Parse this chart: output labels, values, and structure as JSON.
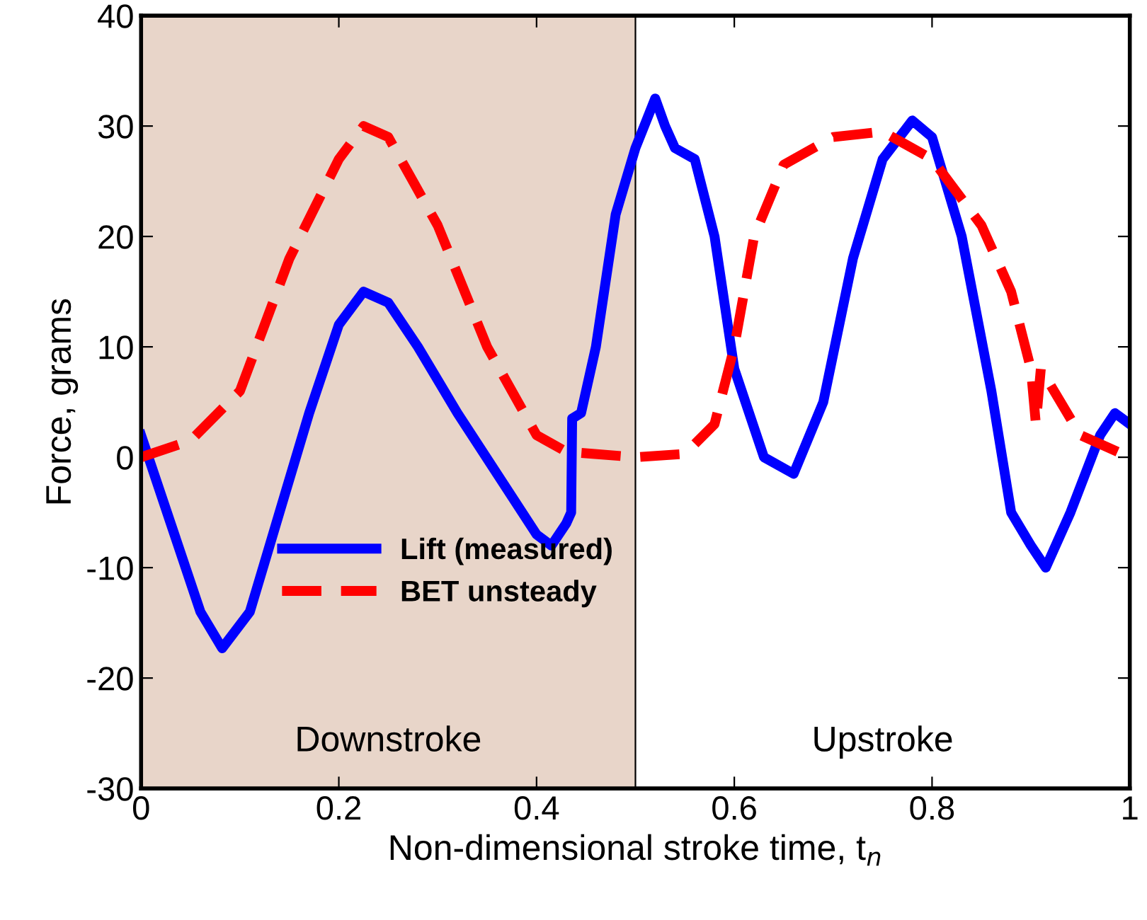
{
  "chart_data": {
    "type": "line",
    "xlabel": "Non-dimensional stroke time, t$_{n}$",
    "ylabel": "Force, grams",
    "xlim": [
      0,
      1
    ],
    "ylim": [
      -30,
      40
    ],
    "xticks": [
      0,
      0.2,
      0.4,
      0.6,
      0.8,
      1
    ],
    "yticks": [
      -30,
      -20,
      -10,
      0,
      10,
      20,
      30,
      40
    ],
    "grid": false,
    "legend": "bottom",
    "bands": [
      {
        "axis": "x",
        "from": 0,
        "to": 0.5,
        "label": "Downstroke",
        "color": "#e8d5c9"
      }
    ],
    "annotations": [
      "Upstroke"
    ],
    "ref_lines": [
      {
        "axis": "x",
        "value": 0.5,
        "color": "#000000"
      }
    ],
    "series": [
      {
        "name": "Lift (measured)",
        "color": "#0000ff",
        "line_style": "solid",
        "x": [
          0,
          0.03,
          0.06,
          0.082,
          0.11,
          0.14,
          0.17,
          0.2,
          0.225,
          0.25,
          0.28,
          0.32,
          0.36,
          0.4,
          0.415,
          0.43,
          0.435,
          0.436,
          0.445,
          0.46,
          0.48,
          0.5,
          0.52,
          0.53,
          0.54,
          0.56,
          0.58,
          0.6,
          0.63,
          0.66,
          0.69,
          0.72,
          0.75,
          0.78,
          0.8,
          0.83,
          0.86,
          0.88,
          0.9,
          0.915,
          0.94,
          0.97,
          0.985,
          1.0
        ],
        "values": [
          2,
          -6,
          -14,
          -17.3,
          -14,
          -5,
          4,
          12,
          15,
          14,
          10,
          4,
          -1.5,
          -7,
          -8,
          -6,
          -5,
          3.5,
          4,
          10,
          22,
          28,
          32.5,
          30,
          28,
          27,
          20,
          8,
          0,
          -1.5,
          5,
          18,
          27,
          30.5,
          29,
          20,
          6,
          -5,
          -8,
          -10,
          -5,
          2,
          4,
          3
        ]
      },
      {
        "name": "BET unsteady",
        "color": "#ff0000",
        "line_style": "dashed",
        "x": [
          0,
          0.05,
          0.1,
          0.15,
          0.2,
          0.225,
          0.25,
          0.3,
          0.35,
          0.4,
          0.43,
          0.5,
          0.55,
          0.58,
          0.6,
          0.62,
          0.65,
          0.7,
          0.75,
          0.8,
          0.85,
          0.88,
          0.9,
          0.905,
          0.91,
          0.95,
          1.0
        ],
        "values": [
          0,
          1.5,
          6,
          18,
          27,
          30,
          29,
          21,
          10,
          2,
          0.5,
          0,
          0.3,
          3,
          10,
          20,
          26.5,
          29,
          29.5,
          27,
          21,
          15,
          8,
          3,
          8,
          2,
          0
        ]
      }
    ]
  }
}
